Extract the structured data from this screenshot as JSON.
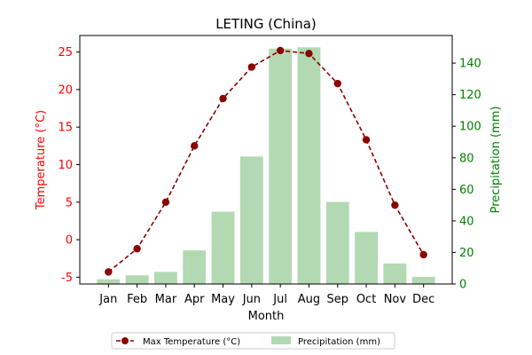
{
  "chart_data": {
    "type": "bar",
    "title": "LETING (China)",
    "xlabel": "Month",
    "ylabel_left": "Temperature (°C)",
    "ylabel_right": "Precipitation (mm)",
    "categories": [
      "Jan",
      "Feb",
      "Mar",
      "Apr",
      "May",
      "Jun",
      "Jul",
      "Aug",
      "Sep",
      "Oct",
      "Nov",
      "Dec"
    ],
    "series": [
      {
        "name": "Max Temperature (°C)",
        "type": "line",
        "axis": "left",
        "values": [
          -4.3,
          -1.2,
          5.0,
          12.5,
          18.8,
          23.0,
          25.2,
          24.8,
          20.8,
          13.3,
          4.6,
          -2.0
        ]
      },
      {
        "name": "Precipitation (mm)",
        "type": "bar",
        "axis": "right",
        "values": [
          3,
          5.5,
          7.7,
          21.3,
          45.8,
          80.8,
          149.2,
          150.0,
          52.0,
          33.0,
          13.0,
          4.5
        ]
      }
    ],
    "ylim_left": [
      -5.9,
      27.2
    ],
    "ylim_right": [
      0,
      157.5
    ],
    "yticks_left": [
      -5,
      0,
      5,
      10,
      15,
      20,
      25
    ],
    "yticks_right": [
      0,
      20,
      40,
      60,
      80,
      100,
      120,
      140
    ],
    "grid": false,
    "legend_placement": "bottom-center",
    "colors": {
      "line": "#8b0000",
      "bar": "#b2d9b2",
      "left_axis": "#ff0000",
      "right_axis": "#008000"
    }
  }
}
